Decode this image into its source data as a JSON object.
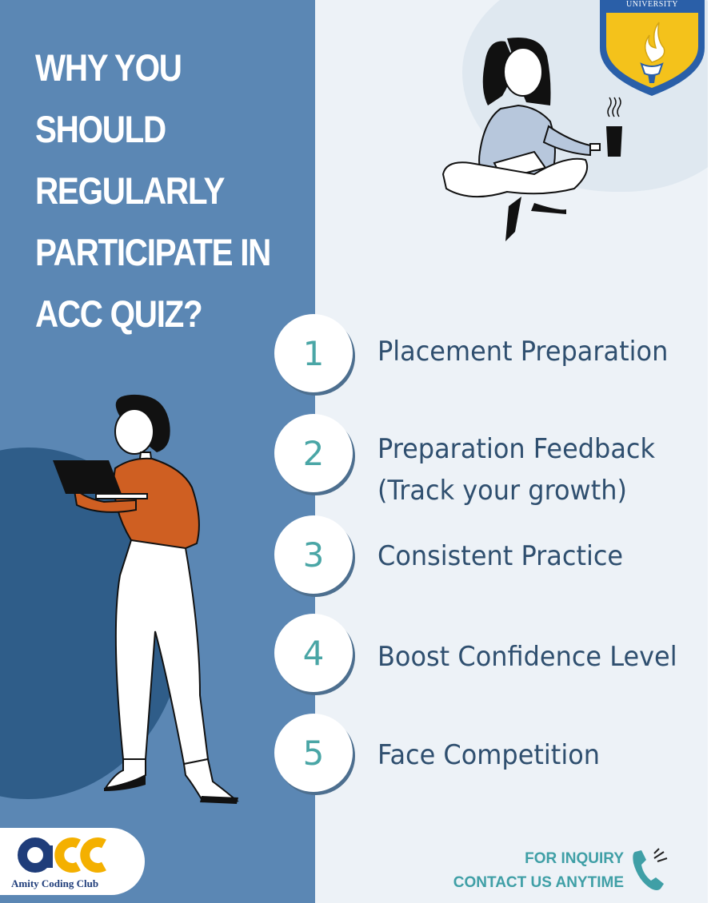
{
  "headline": {
    "lines": [
      "WHY YOU",
      "SHOULD",
      "REGULARLY",
      "PARTICIPATE IN",
      "ACC QUIZ?"
    ]
  },
  "badge": {
    "text": "UNIVERSITY"
  },
  "items": [
    {
      "number": "1",
      "lines": [
        "Placement Preparation"
      ]
    },
    {
      "number": "2",
      "lines": [
        "Preparation Feedback",
        "(Track your growth)"
      ]
    },
    {
      "number": "3",
      "lines": [
        "Consistent Practice"
      ]
    },
    {
      "number": "4",
      "lines": [
        "Boost Confidence Level"
      ]
    },
    {
      "number": "5",
      "lines": [
        "Face Competition"
      ]
    }
  ],
  "logo": {
    "mark": "acc",
    "name": "Amity Coding Club"
  },
  "contact": {
    "line1": "FOR INQUIRY",
    "line2": "CONTACT US ANYTIME"
  },
  "colors": {
    "left_panel": "#5b87b4",
    "dark_blob": "#2f5d89",
    "right_background": "#edf2f7",
    "heading_text": "#ffffff",
    "number_teal": "#4aa6a6",
    "item_text": "#2f4f6f",
    "contact_teal": "#3f9fa6",
    "badge_yellow": "#f4c21b",
    "badge_blue": "#2a5fa8",
    "shirt_orange": "#cf5f22"
  },
  "icons": [
    "university-crest-icon",
    "steaming-mug-icon",
    "phone-icon",
    "acc-logo-mark"
  ]
}
